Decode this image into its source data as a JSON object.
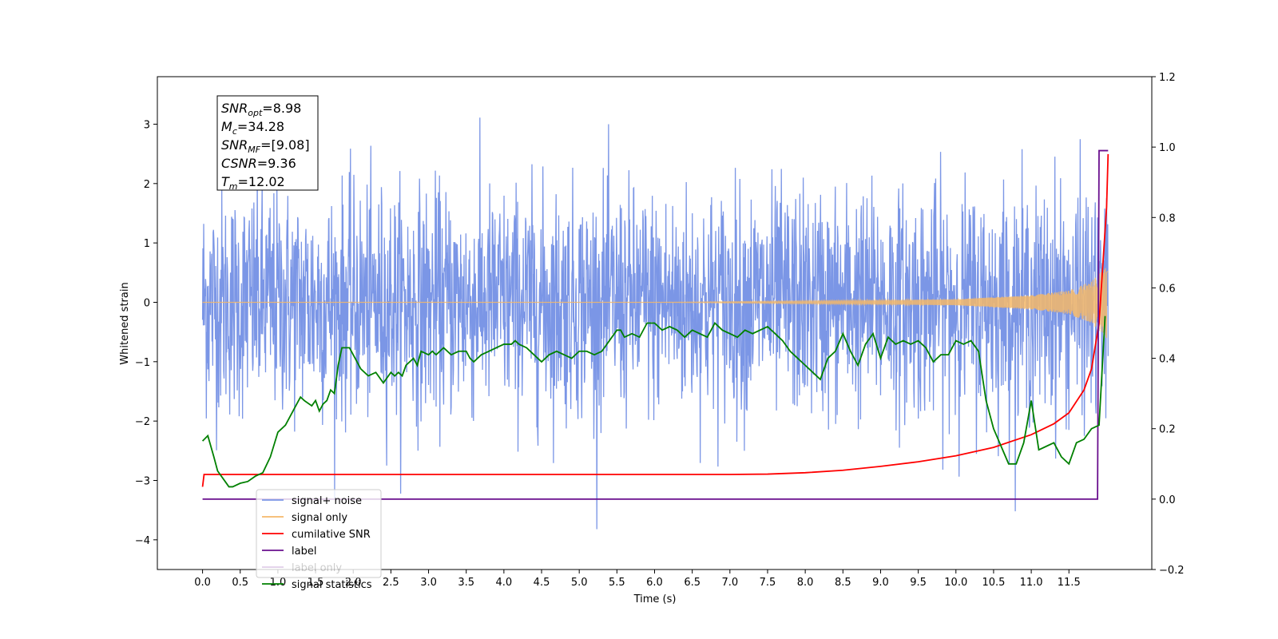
{
  "chart_data": {
    "type": "line",
    "xlabel": "Time (s)",
    "ylabel": "Whitened strain",
    "xlim": [
      -0.6,
      12.6
    ],
    "ylim": [
      -4.5,
      3.8
    ],
    "ylim_right": [
      -0.2,
      1.2
    ],
    "x_ticks": [
      "0.0",
      "0.5",
      "1.0",
      "1.5",
      "2.0",
      "2.5",
      "3.0",
      "3.5",
      "4.0",
      "4.5",
      "5.0",
      "5.5",
      "6.0",
      "6.5",
      "7.0",
      "7.5",
      "8.0",
      "8.5",
      "9.0",
      "9.5",
      "10.0",
      "10.5",
      "11.0",
      "11.5"
    ],
    "y_ticks": [
      "3",
      "2",
      "1",
      "0",
      "−1",
      "−2",
      "−3",
      "−4"
    ],
    "y_ticks_right": [
      "1.2",
      "1.0",
      "0.8",
      "0.6",
      "0.4",
      "0.2",
      "0.0",
      "−0.2"
    ],
    "grid": false,
    "legend_placement": "lower-left",
    "annotation": {
      "lines": [
        {
          "var": "SNR",
          "sub": "opt",
          "value": "=8.98"
        },
        {
          "var": "M",
          "sub": "c",
          "value": "=34.28"
        },
        {
          "var": "SNR",
          "sub": "MF",
          "value": "=[9.08]"
        },
        {
          "var": "CSNR",
          "sub": "",
          "value": "=9.36"
        },
        {
          "var": "T",
          "sub": "m",
          "value": "=12.02"
        }
      ]
    },
    "series": [
      {
        "name": "signal+ noise",
        "color": "#7b96e6",
        "axis": "left",
        "description_values": {
          "x_range": [
            0.0,
            12.02
          ],
          "amplitude_std": 0.95
        }
      },
      {
        "name": "signal only",
        "color": "#f5b869",
        "axis": "left",
        "values": {
          "x": [
            0.0,
            6.0,
            10.0,
            11.0,
            11.5,
            11.8,
            11.95,
            12.02
          ],
          "amplitude": [
            0.0,
            0.0,
            0.05,
            0.12,
            0.2,
            0.35,
            0.55,
            0.65
          ]
        }
      },
      {
        "name": "cumilative SNR",
        "color": "#ff0000",
        "axis": "right",
        "x": [
          0.0,
          0.02,
          7.0,
          7.5,
          8.0,
          8.5,
          9.0,
          9.5,
          10.0,
          10.5,
          11.0,
          11.3,
          11.5,
          11.7,
          11.8,
          11.9,
          12.0,
          12.02
        ],
        "values": [
          0.035,
          0.07,
          0.07,
          0.071,
          0.075,
          0.082,
          0.093,
          0.106,
          0.123,
          0.147,
          0.183,
          0.214,
          0.245,
          0.31,
          0.37,
          0.5,
          0.83,
          0.98
        ]
      },
      {
        "name": "label",
        "color": "#6a0f8e",
        "axis": "right",
        "x": [
          0.0,
          11.88,
          11.9,
          12.02
        ],
        "values": [
          0.0,
          0.0,
          0.99,
          0.99
        ]
      },
      {
        "name": "label only",
        "color": "#6a0f8e",
        "axis": "right",
        "hidden_behind_legend": true
      },
      {
        "name": "signal statistics",
        "color": "#008000",
        "axis": "right",
        "x": [
          0.0,
          0.07,
          0.15,
          0.2,
          0.3,
          0.35,
          0.4,
          0.5,
          0.6,
          0.7,
          0.8,
          0.9,
          1.0,
          1.1,
          1.2,
          1.3,
          1.35,
          1.45,
          1.5,
          1.55,
          1.6,
          1.65,
          1.7,
          1.75,
          1.8,
          1.85,
          1.9,
          1.95,
          2.05,
          2.1,
          2.2,
          2.3,
          2.4,
          2.5,
          2.55,
          2.6,
          2.65,
          2.7,
          2.8,
          2.85,
          2.9,
          3.0,
          3.05,
          3.1,
          3.2,
          3.3,
          3.4,
          3.5,
          3.55,
          3.6,
          3.7,
          3.8,
          3.9,
          4.0,
          4.1,
          4.15,
          4.2,
          4.3,
          4.4,
          4.5,
          4.6,
          4.7,
          4.8,
          4.9,
          5.0,
          5.1,
          5.2,
          5.3,
          5.4,
          5.5,
          5.55,
          5.6,
          5.7,
          5.8,
          5.9,
          6.0,
          6.1,
          6.2,
          6.3,
          6.4,
          6.5,
          6.6,
          6.7,
          6.8,
          6.9,
          7.0,
          7.1,
          7.2,
          7.3,
          7.4,
          7.5,
          7.6,
          7.7,
          7.8,
          7.9,
          8.0,
          8.1,
          8.2,
          8.3,
          8.4,
          8.5,
          8.6,
          8.7,
          8.8,
          8.9,
          9.0,
          9.1,
          9.2,
          9.3,
          9.4,
          9.5,
          9.6,
          9.7,
          9.8,
          9.9,
          10.0,
          10.1,
          10.2,
          10.3,
          10.4,
          10.5,
          10.6,
          10.7,
          10.8,
          10.9,
          11.0,
          11.1,
          11.2,
          11.3,
          11.4,
          11.5,
          11.6,
          11.7,
          11.8,
          11.9,
          11.98
        ],
        "values": [
          0.165,
          0.18,
          0.12,
          0.08,
          0.05,
          0.035,
          0.035,
          0.045,
          0.05,
          0.065,
          0.075,
          0.12,
          0.19,
          0.21,
          0.25,
          0.29,
          0.28,
          0.265,
          0.28,
          0.25,
          0.27,
          0.28,
          0.31,
          0.3,
          0.38,
          0.43,
          0.43,
          0.43,
          0.39,
          0.37,
          0.35,
          0.36,
          0.33,
          0.36,
          0.35,
          0.36,
          0.35,
          0.38,
          0.4,
          0.38,
          0.42,
          0.41,
          0.42,
          0.41,
          0.43,
          0.41,
          0.42,
          0.42,
          0.4,
          0.39,
          0.41,
          0.42,
          0.43,
          0.44,
          0.44,
          0.45,
          0.44,
          0.43,
          0.41,
          0.39,
          0.41,
          0.42,
          0.41,
          0.4,
          0.42,
          0.42,
          0.41,
          0.42,
          0.45,
          0.48,
          0.48,
          0.46,
          0.47,
          0.46,
          0.5,
          0.5,
          0.48,
          0.49,
          0.48,
          0.46,
          0.48,
          0.47,
          0.46,
          0.5,
          0.48,
          0.47,
          0.46,
          0.48,
          0.47,
          0.48,
          0.49,
          0.47,
          0.45,
          0.42,
          0.4,
          0.38,
          0.36,
          0.34,
          0.4,
          0.42,
          0.47,
          0.42,
          0.38,
          0.44,
          0.47,
          0.4,
          0.46,
          0.44,
          0.45,
          0.44,
          0.45,
          0.43,
          0.39,
          0.41,
          0.41,
          0.45,
          0.44,
          0.45,
          0.42,
          0.28,
          0.2,
          0.15,
          0.1,
          0.1,
          0.16,
          0.28,
          0.14,
          0.15,
          0.16,
          0.12,
          0.1,
          0.16,
          0.17,
          0.2,
          0.21,
          0.52
        ]
      }
    ]
  }
}
